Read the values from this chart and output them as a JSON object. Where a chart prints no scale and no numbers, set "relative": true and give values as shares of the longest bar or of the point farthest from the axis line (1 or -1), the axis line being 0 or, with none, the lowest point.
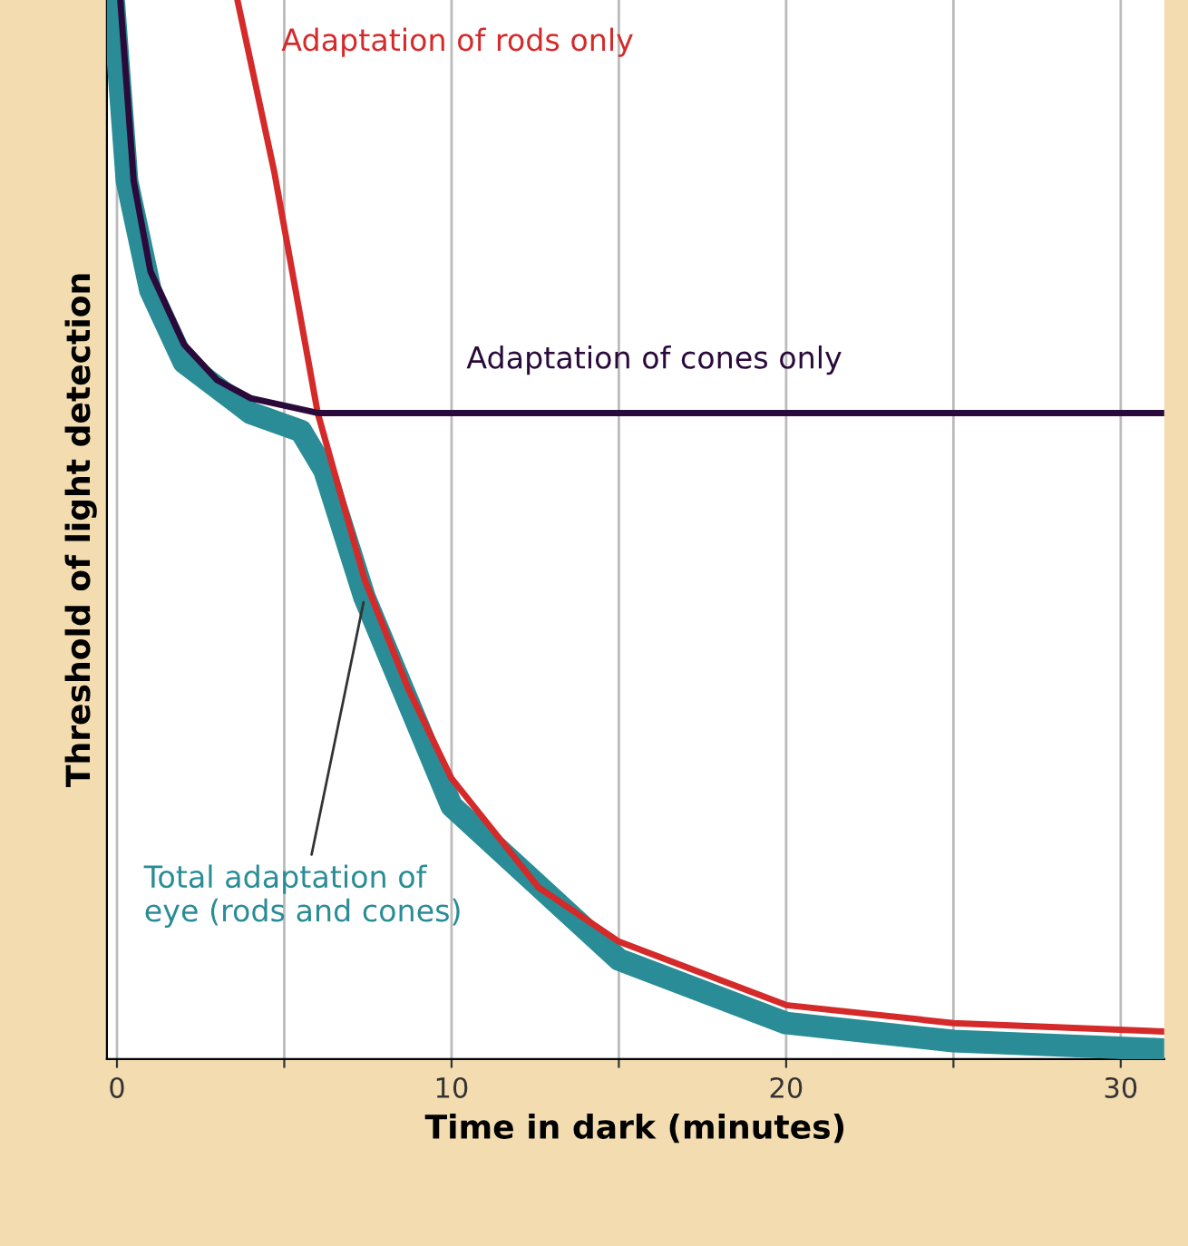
{
  "chart_data": {
    "type": "line",
    "relative": true,
    "xlabel": "Time in dark (minutes)",
    "ylabel": "Threshold of light detection",
    "xlim": [
      -0.3,
      31.3
    ],
    "xticks": [
      0,
      {
        "value": 5,
        "label": null
      },
      10,
      {
        "value": 15,
        "label": null
      },
      20,
      {
        "value": 25,
        "label": null
      },
      30
    ],
    "grid": "x",
    "legend": false,
    "marker": "none",
    "line_style": "solid",
    "series": [
      {
        "name": "Total adaptation of eye (rods and cones)",
        "color": "#2a8c96",
        "x": [
          -0.1,
          0.3,
          1,
          2,
          4,
          5.5,
          6.2,
          7.4,
          10,
          15,
          20,
          25,
          31.3
        ],
        "values": [
          1.0,
          0.829,
          0.726,
          0.658,
          0.61,
          0.593,
          0.556,
          0.436,
          0.239,
          0.094,
          0.034,
          0.017,
          0.009
        ]
      },
      {
        "name": "Adaptation of rods only",
        "color": "#d42a2a",
        "x": [
          3.6,
          4.7,
          6,
          7.4,
          8.7,
          10,
          12.6,
          15,
          20,
          25,
          31.3
        ],
        "values": [
          1.0,
          0.838,
          0.61,
          0.453,
          0.35,
          0.265,
          0.162,
          0.111,
          0.051,
          0.034,
          0.026
        ]
      },
      {
        "name": "Adaptation of cones only",
        "color": "#2a0a3a",
        "x": [
          0.1,
          0.5,
          1,
          2,
          3,
          4,
          6,
          31.3
        ],
        "values": [
          1.0,
          0.829,
          0.744,
          0.675,
          0.641,
          0.624,
          0.61,
          0.61
        ]
      }
    ]
  }
}
